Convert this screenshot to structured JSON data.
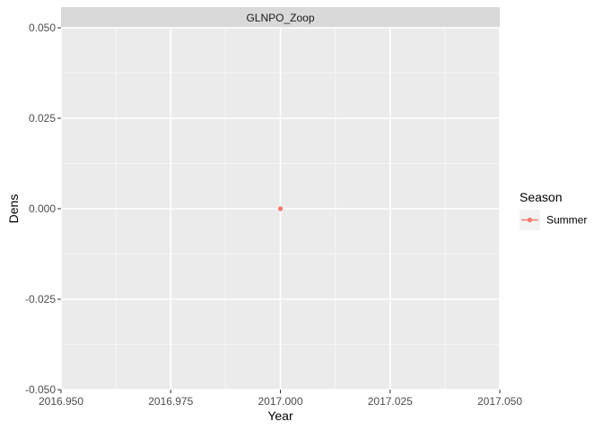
{
  "chart_data": {
    "type": "scatter",
    "facet_label": "GLNPO_Zoop",
    "xlabel": "Year",
    "ylabel": "Dens",
    "xlim": [
      2016.95,
      2017.05
    ],
    "ylim": [
      -0.05,
      0.05
    ],
    "x_ticks": [
      2016.95,
      2016.975,
      2017.0,
      2017.025,
      2017.05
    ],
    "x_tick_labels": [
      "2016.950",
      "2016.975",
      "2017.000",
      "2017.025",
      "2017.050"
    ],
    "y_ticks": [
      -0.05,
      -0.025,
      0.0,
      0.025,
      0.05
    ],
    "y_tick_labels": [
      "-0.050",
      "-0.025",
      "0.000",
      "0.025",
      "0.050"
    ],
    "grid": true,
    "legend": {
      "title": "Season",
      "position": "right"
    },
    "series": [
      {
        "name": "Summer",
        "color": "#F8766D",
        "x": [
          2017.0
        ],
        "y": [
          0.0
        ]
      }
    ]
  },
  "colors": {
    "panel_background": "#EBEBEB",
    "strip_background": "#D9D9D9",
    "grid_major": "#FFFFFF"
  }
}
